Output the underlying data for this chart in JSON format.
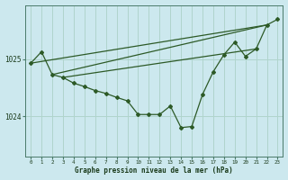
{
  "bg_color": "#cce8ee",
  "grid_color": "#b0d4cc",
  "line_color": "#2d5a27",
  "title": "Graphe pression niveau de la mer (hPa)",
  "ylabel_values": [
    1024,
    1025
  ],
  "xlim": [
    -0.5,
    23.5
  ],
  "ylim": [
    1023.3,
    1025.95
  ],
  "main_data": {
    "x": [
      0,
      1,
      2,
      3,
      4,
      5,
      6,
      7,
      8,
      9,
      10,
      11,
      12,
      13,
      14,
      15,
      16,
      17,
      18,
      19,
      20,
      21,
      22,
      23
    ],
    "y": [
      1024.93,
      1025.13,
      1024.73,
      1024.68,
      1024.58,
      1024.52,
      1024.45,
      1024.4,
      1024.33,
      1024.27,
      1024.03,
      1024.03,
      1024.03,
      1024.18,
      1023.8,
      1023.82,
      1024.38,
      1024.78,
      1025.08,
      1025.3,
      1025.05,
      1025.18,
      1025.6,
      1025.7
    ]
  },
  "trend_line1": {
    "x": [
      0,
      22
    ],
    "y": [
      1024.93,
      1025.6
    ]
  },
  "trend_line2": {
    "x": [
      2,
      22
    ],
    "y": [
      1024.73,
      1025.6
    ]
  },
  "trend_line3": {
    "x": [
      3,
      21
    ],
    "y": [
      1024.68,
      1025.18
    ]
  },
  "xtick_labels": [
    "0",
    "1",
    "2",
    "3",
    "4",
    "5",
    "6",
    "7",
    "8",
    "9",
    "10",
    "11",
    "12",
    "13",
    "14",
    "15",
    "16",
    "17",
    "18",
    "19",
    "20",
    "21",
    "22",
    "23"
  ]
}
